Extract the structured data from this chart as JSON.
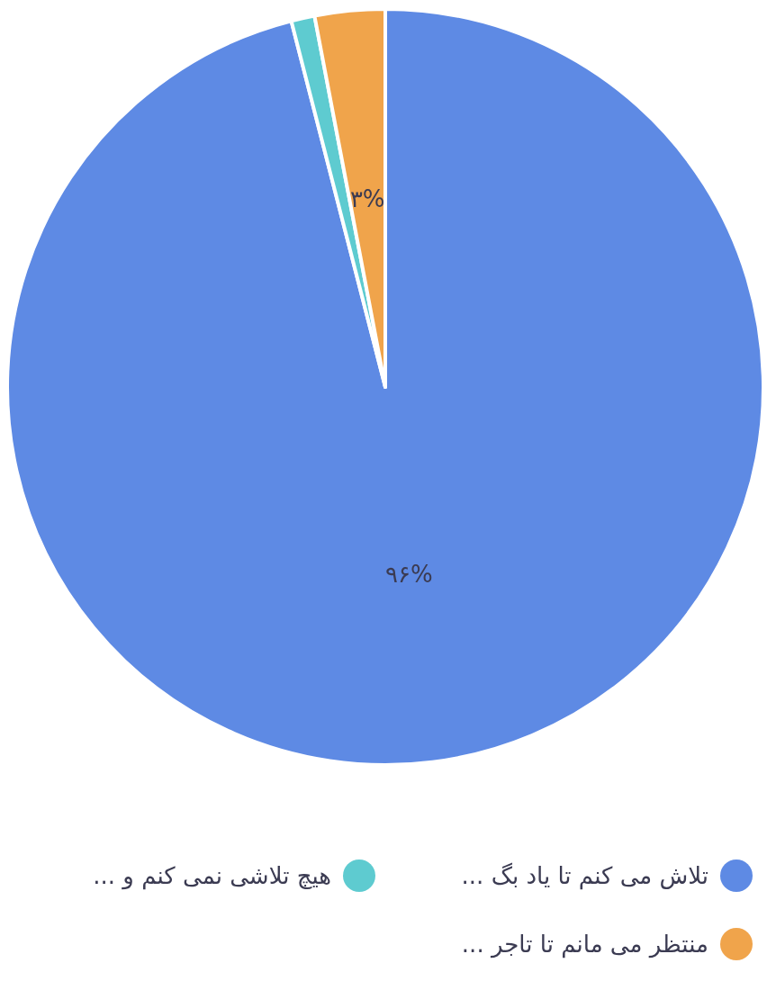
{
  "chart_data": {
    "type": "pie",
    "categories": [
      "تلاش می کنم تا یاد بگ ...",
      "هیچ تلاشی نمی کنم و ...",
      "منتظر می مانم تا تاجر ..."
    ],
    "values": [
      96,
      1,
      3
    ],
    "colors": [
      "#5e8ae4",
      "#5ecbd0",
      "#f0a44b"
    ],
    "value_labels": [
      "۹۶%",
      null,
      "۳%"
    ],
    "legend": "bottom"
  }
}
